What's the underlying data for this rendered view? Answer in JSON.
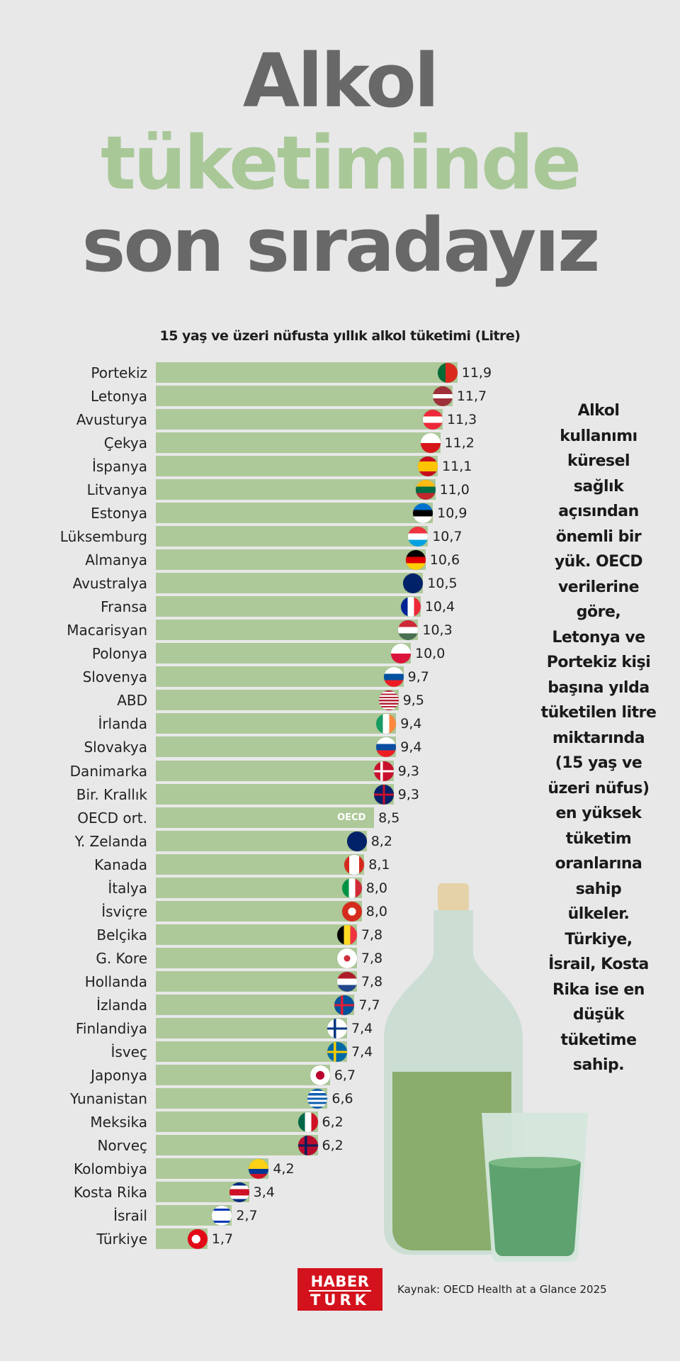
{
  "title": {
    "line1": "Alkol",
    "line2": "tüketiminde",
    "line3": "son sıradayız",
    "colors": {
      "grey": "#686868",
      "green": "#a9c898"
    }
  },
  "note_lines": [
    "Alkol",
    "kullanımı",
    "küresel",
    "sağlık",
    "açısından",
    "önemli bir",
    "yük. OECD",
    "verilerine",
    "göre,",
    "Letonya ve",
    "Portekiz kişi",
    "başına yılda",
    "tüketilen litre",
    "miktarında",
    "(15 yaş ve",
    "üzeri nüfus)",
    "en yüksek",
    "tüketim",
    "oranlarına",
    "sahip",
    "ülkeler.",
    "Türkiye,",
    "İsrail, Kosta",
    "Rika ise en",
    "düşük",
    "tüketime",
    "sahip."
  ],
  "footer": {
    "logo_line1": "HABER",
    "logo_line2": "TURK",
    "source": "Kaynak: OECD Health at a Glance 2025",
    "logo_color": "#d3121d"
  },
  "chart_data": {
    "type": "bar",
    "orientation": "horizontal",
    "title": "15 yaş ve üzeri nüfusta yıllık alkol tüketimi (Litre)",
    "bar_color": "#aec999",
    "categories": [
      "Portekiz",
      "Letonya",
      "Avusturya",
      "Çekya",
      "İspanya",
      "Litvanya",
      "Estonya",
      "Lüksemburg",
      "Almanya",
      "Avustralya",
      "Fransa",
      "Macarisyan",
      "Polonya",
      "Slovenya",
      "ABD",
      "İrlanda",
      "Slovakya",
      "Danimarka",
      "Bir. Krallık",
      "OECD ort.",
      "Y. Zelanda",
      "Kanada",
      "İtalya",
      "İsviçre",
      "Belçika",
      "G. Kore",
      "Hollanda",
      "İzlanda",
      "Finlandiya",
      "İsveç",
      "Japonya",
      "Yunanistan",
      "Meksika",
      "Norveç",
      "Kolombiya",
      "Kosta Rika",
      "İsrail",
      "Türkiye"
    ],
    "values": [
      11.9,
      11.7,
      11.3,
      11.2,
      11.1,
      11.0,
      10.9,
      10.7,
      10.6,
      10.5,
      10.4,
      10.3,
      10.0,
      9.7,
      9.5,
      9.4,
      9.4,
      9.3,
      9.3,
      8.5,
      8.2,
      8.1,
      8.0,
      8.0,
      7.8,
      7.8,
      7.8,
      7.7,
      7.4,
      7.4,
      6.7,
      6.6,
      6.2,
      6.2,
      4.2,
      3.4,
      2.7,
      1.7
    ],
    "value_labels": [
      "11,9",
      "11,7",
      "11,3",
      "11,2",
      "11,1",
      "11,0",
      "10,9",
      "10,7",
      "10,6",
      "10,5",
      "10,4",
      "10,3",
      "10,0",
      "9,7",
      "9,5",
      "9,4",
      "9,4",
      "9,3",
      "9,3",
      "8,5",
      "8,2",
      "8,1",
      "8,0",
      "8,0",
      "7,8",
      "7,8",
      "7,8",
      "7,7",
      "7,4",
      "7,4",
      "6,7",
      "6,6",
      "6,2",
      "6,2",
      "4,2",
      "3,4",
      "2,7",
      "1,7"
    ],
    "flags": [
      "pt",
      "lv",
      "at",
      "cz",
      "es",
      "lt",
      "ee",
      "lu",
      "de",
      "au",
      "fr",
      "hu",
      "pl",
      "si",
      "us",
      "ie",
      "sk",
      "dk",
      "gb",
      "oecd",
      "nz",
      "ca",
      "it",
      "ch",
      "be",
      "kr",
      "nl",
      "is",
      "fi",
      "se",
      "jp",
      "gr",
      "mx",
      "no",
      "co",
      "cr",
      "il",
      "tr"
    ],
    "oecd_tag": "OECD"
  }
}
